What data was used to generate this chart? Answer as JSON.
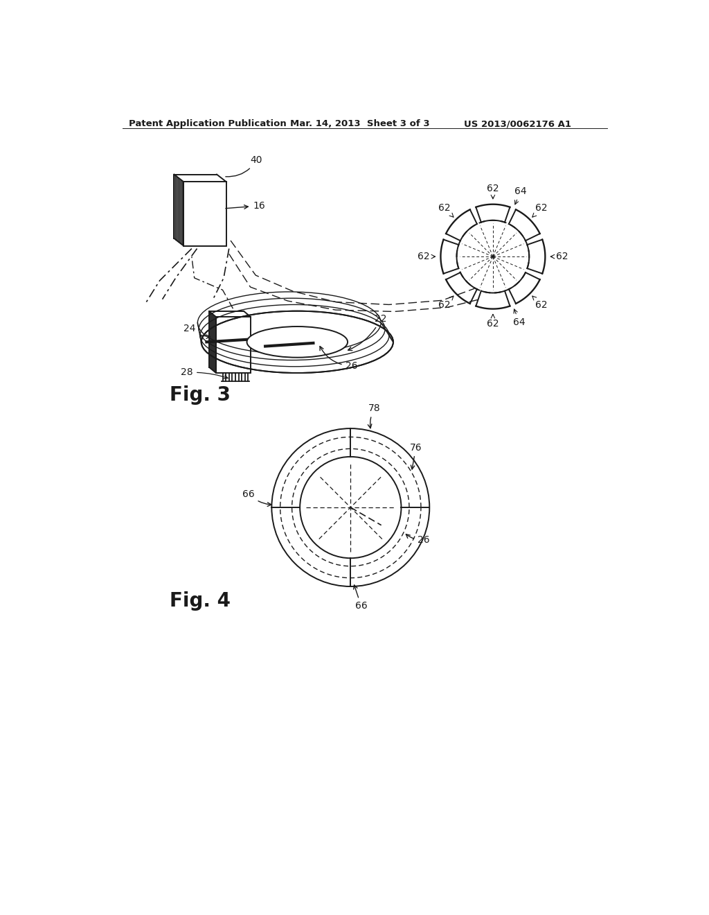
{
  "header_left": "Patent Application Publication",
  "header_mid": "Mar. 14, 2013  Sheet 3 of 3",
  "header_right": "US 2013/0062176 A1",
  "fig3_label": "Fig. 3",
  "fig4_label": "Fig. 4",
  "background_color": "#ffffff",
  "line_color": "#1a1a1a",
  "label_fontsize": 10,
  "header_fontsize": 9.5,
  "fig_label_fontsize": 20
}
